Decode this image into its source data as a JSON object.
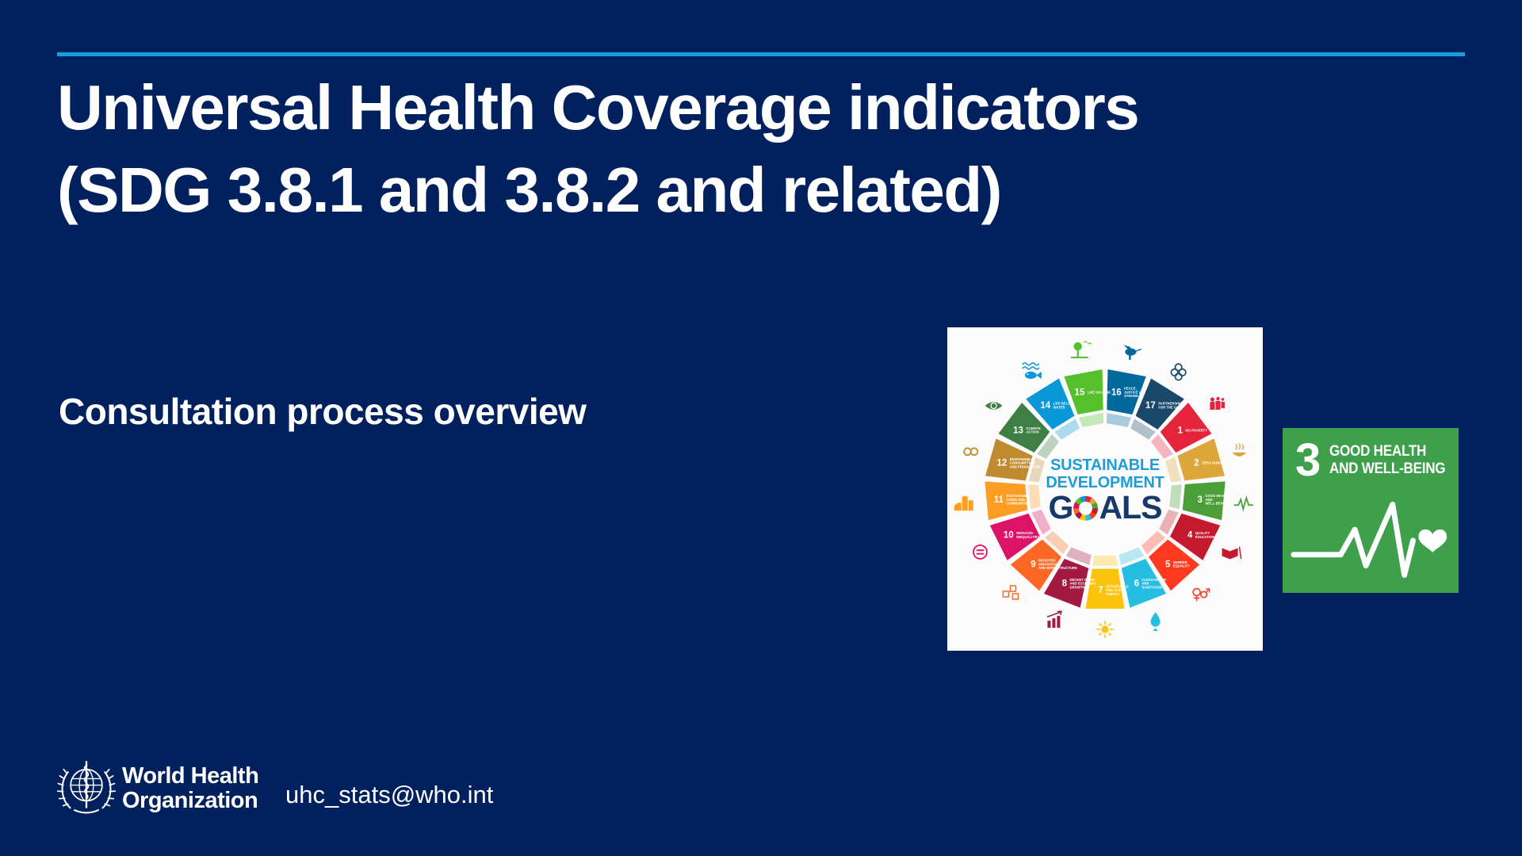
{
  "slide": {
    "title_line1": "Universal Health Coverage indicators",
    "title_line2": "(SDG 3.8.1 and 3.8.2 and related)",
    "subtitle": "Consultation process overview",
    "organization_line1": "World Health",
    "organization_line2": "Organization",
    "contact_email": "uhc_stats@who.int",
    "colors": {
      "background": "#01205E",
      "divider": "#1A9CD8",
      "text": "#FFFFFF"
    }
  },
  "sdg_wheel": {
    "card_background": "#FCFCFD",
    "center_line1": "SUSTAINABLE",
    "center_line2": "DEVELOPMENT",
    "center_word": "GOALS",
    "center_word_prefix": "G",
    "center_word_suffix": "ALS",
    "center_text_color": "#1D9CD9",
    "center_word_color": "#17386B",
    "goals": [
      {
        "num": 1,
        "name": "NO POVERTY",
        "color": "#E5243B",
        "icon": "people-icon"
      },
      {
        "num": 2,
        "name": "ZERO HUNGER",
        "color": "#DDA63A",
        "icon": "food-bowl-icon"
      },
      {
        "num": 3,
        "name": "GOOD HEALTH AND WELL-BEING",
        "color": "#4C9F38",
        "icon": "heartbeat-icon"
      },
      {
        "num": 4,
        "name": "QUALITY EDUCATION",
        "color": "#C5192D",
        "icon": "book-icon"
      },
      {
        "num": 5,
        "name": "GENDER EQUALITY",
        "color": "#FF3A21",
        "icon": "gender-symbols-icon"
      },
      {
        "num": 6,
        "name": "CLEAN WATER AND SANITATION",
        "color": "#26BDE2",
        "icon": "water-drop-icon"
      },
      {
        "num": 7,
        "name": "AFFORDABLE AND CLEAN ENERGY",
        "color": "#FCC30B",
        "icon": "sun-icon"
      },
      {
        "num": 8,
        "name": "DECENT WORK AND ECONOMIC GROWTH",
        "color": "#A21942",
        "icon": "growth-chart-icon"
      },
      {
        "num": 9,
        "name": "INDUSTRY, INNOVATION AND INFRASTRUCTURE",
        "color": "#FD6925",
        "icon": "cubes-icon"
      },
      {
        "num": 10,
        "name": "REDUCED INEQUALITIES",
        "color": "#DD1367",
        "icon": "equality-icon"
      },
      {
        "num": 11,
        "name": "SUSTAINABLE CITIES AND COMMUNITIES",
        "color": "#FD9D24",
        "icon": "buildings-icon"
      },
      {
        "num": 12,
        "name": "RESPONSIBLE CONSUMPTION AND PRODUCTION",
        "color": "#BF8B2E",
        "icon": "infinity-icon"
      },
      {
        "num": 13,
        "name": "CLIMATE ACTION",
        "color": "#3F7E44",
        "icon": "globe-eye-icon"
      },
      {
        "num": 14,
        "name": "LIFE BELOW WATER",
        "color": "#0A97D9",
        "icon": "fish-icon"
      },
      {
        "num": 15,
        "name": "LIFE ON LAND",
        "color": "#56C02B",
        "icon": "tree-icon"
      },
      {
        "num": 16,
        "name": "PEACE, JUSTICE AND STRONG INSTITUTIONS",
        "color": "#00689D",
        "icon": "dove-icon"
      },
      {
        "num": 17,
        "name": "PARTNERSHIPS FOR THE GOALS",
        "color": "#19486A",
        "icon": "interlocking-rings-icon"
      }
    ]
  },
  "sdg3_tile": {
    "number": "3",
    "label_line1": "GOOD HEALTH",
    "label_line2": "AND WELL-BEING",
    "color": "#3EA04B",
    "icon": "heartbeat-heart-icon"
  }
}
